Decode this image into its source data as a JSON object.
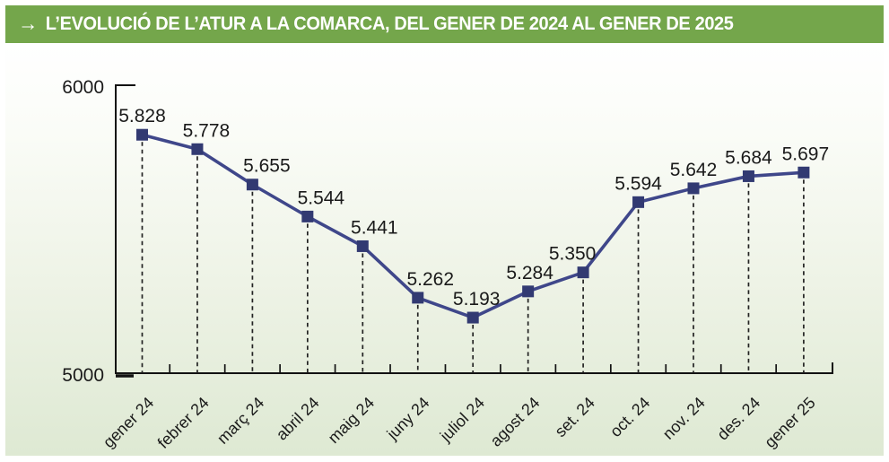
{
  "header": {
    "arrow": "→",
    "title": "L’EVOLUCIÓ DE L’ATUR A LA COMARCA, DEL GENER DE 2024 AL GENER DE 2025",
    "bg_color": "#74a64b",
    "text_color": "#ffffff"
  },
  "chart_data": {
    "type": "line",
    "title": "L’EVOLUCIÓ DE L’ATUR A LA COMARCA, DEL GENER DE 2024 AL GENER DE 2025",
    "categories": [
      "gener 24",
      "febrer 24",
      "març 24",
      "abril 24",
      "maig 24",
      "juny 24",
      "juliol 24",
      "agost 24",
      "set. 24",
      "oct. 24",
      "nov. 24",
      "des. 24",
      "gener 25"
    ],
    "values": [
      5828,
      5778,
      5655,
      5544,
      5441,
      5262,
      5193,
      5284,
      5350,
      5594,
      5642,
      5684,
      5697
    ],
    "value_labels": [
      "5.828",
      "5.778",
      "5.655",
      "5.544",
      "5.441",
      "5.262",
      "5.193",
      "5.284",
      "5.350",
      "5.594",
      "5.642",
      "5.684",
      "5.697"
    ],
    "label_dx": [
      0,
      10,
      16,
      15,
      13,
      14,
      4,
      2,
      -12,
      0,
      0,
      0,
      2
    ],
    "xlabel": "",
    "ylabel": "",
    "ylim": [
      5000,
      6000
    ],
    "y_ticks": [
      {
        "label": "6000",
        "value": 6000
      },
      {
        "label": "5000",
        "value": 5000
      }
    ],
    "grid": false,
    "legend": false,
    "marker_style": "square",
    "guide_lines": "dashed-vertical-from-points",
    "colors": {
      "line": "#3f478a",
      "marker": "#323a72",
      "axis": "#121212",
      "text": "#1a1a1a",
      "panel_gradient_top": "#ffffff",
      "panel_gradient_bottom": "#dee9d3"
    }
  }
}
